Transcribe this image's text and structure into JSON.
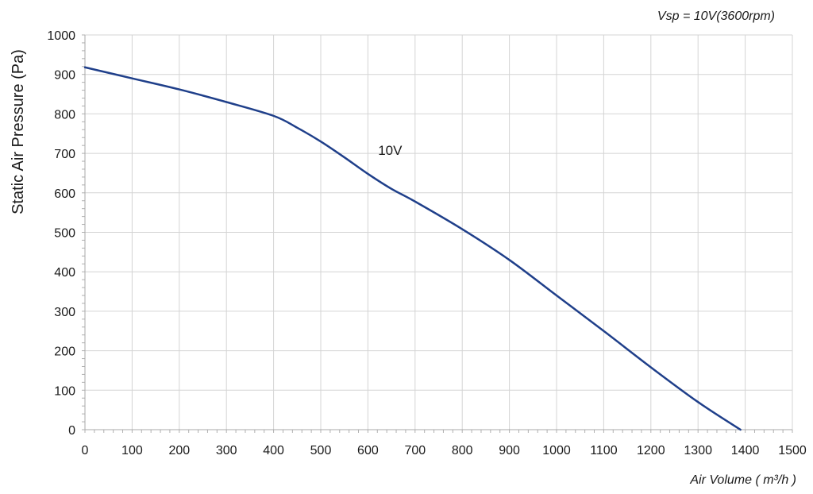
{
  "chart_data": {
    "type": "line",
    "title": "Vsp = 10V(3600rpm)",
    "xlabel": "Air Volume ( m³/h )",
    "ylabel": "Static Air Pressure  (Pa)",
    "xlim": [
      0,
      1500
    ],
    "ylim": [
      0,
      1000
    ],
    "xticks": [
      0,
      100,
      200,
      300,
      400,
      500,
      600,
      700,
      800,
      900,
      1000,
      1100,
      1200,
      1300,
      1400,
      1500
    ],
    "yticks": [
      0,
      100,
      200,
      300,
      400,
      500,
      600,
      700,
      800,
      900,
      1000
    ],
    "grid": true,
    "series": [
      {
        "name": "10V",
        "color": "#1f3f8a",
        "x": [
          0,
          100,
          200,
          300,
          400,
          450,
          500,
          550,
          600,
          650,
          700,
          800,
          900,
          1000,
          1100,
          1200,
          1300,
          1390
        ],
        "y": [
          918,
          890,
          862,
          830,
          795,
          765,
          730,
          690,
          648,
          610,
          578,
          508,
          430,
          340,
          250,
          158,
          70,
          0
        ]
      }
    ],
    "annotations": [
      {
        "text": "10V",
        "x": 630,
        "y": 652
      }
    ]
  }
}
